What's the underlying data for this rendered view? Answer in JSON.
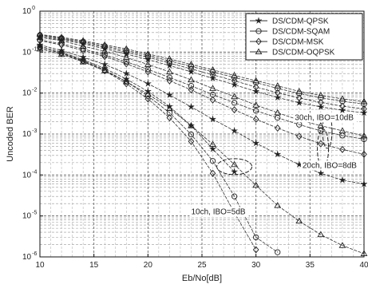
{
  "chart_data": {
    "type": "line",
    "xlabel": "Eb/No[dB]",
    "ylabel": "Uncoded BER",
    "xlim": [
      10,
      40
    ],
    "ylim_log10": [
      -6,
      0
    ],
    "y_scale": "log",
    "grid": "on, dashed",
    "legend_position": "top-right",
    "x_ticks": [
      "10",
      "15",
      "20",
      "25",
      "30",
      "35",
      "40"
    ],
    "y_tick_mantissa": "10",
    "y_tick_exponents": [
      "0",
      "-1",
      "-2",
      "-3",
      "-4",
      "-5",
      "-6"
    ],
    "series": [
      {
        "name": "DS/CDM-QPSK",
        "marker": "star",
        "groups": [
          {
            "x": [
              10,
              12,
              14,
              16,
              18,
              20,
              22,
              24,
              26,
              28
            ],
            "y": [
              0.14,
              0.1,
              0.065,
              0.04,
              0.022,
              0.011,
              0.0047,
              0.0016,
              0.00043,
              0.00012
            ]
          },
          {
            "x": [
              10,
              12,
              14,
              16,
              18,
              20,
              22,
              24,
              26,
              28,
              30,
              32,
              34,
              36,
              38,
              40
            ],
            "y": [
              0.15,
              0.11,
              0.075,
              0.05,
              0.03,
              0.017,
              0.009,
              0.0046,
              0.0023,
              0.0012,
              0.0006,
              0.00032,
              0.00018,
              0.00011,
              7.5e-05,
              6e-05
            ]
          },
          {
            "x": [
              10,
              12,
              14,
              16,
              18,
              20,
              22,
              24,
              26,
              28,
              30,
              32,
              34,
              36,
              38,
              40
            ],
            "y": [
              0.24,
              0.2,
              0.16,
              0.12,
              0.09,
              0.066,
              0.047,
              0.033,
              0.023,
              0.016,
              0.011,
              0.0078,
              0.0058,
              0.0046,
              0.0038,
              0.0033
            ]
          }
        ]
      },
      {
        "name": "DS/CDM-SQAM",
        "marker": "circle",
        "groups": [
          {
            "x": [
              10,
              12,
              14,
              16,
              18,
              20,
              22,
              24,
              26,
              28,
              30,
              32
            ],
            "y": [
              0.13,
              0.095,
              0.062,
              0.037,
              0.019,
              0.0085,
              0.0033,
              0.00098,
              0.00022,
              3e-05,
              3e-06,
              1.3e-06
            ]
          },
          {
            "x": [
              10,
              12,
              14,
              16,
              18,
              20,
              22,
              24,
              26,
              28,
              30,
              32,
              34,
              36,
              38,
              40
            ],
            "y": [
              0.2,
              0.16,
              0.12,
              0.085,
              0.058,
              0.038,
              0.024,
              0.015,
              0.0092,
              0.0058,
              0.0037,
              0.0025,
              0.0017,
              0.0012,
              0.00092,
              0.00075
            ]
          },
          {
            "x": [
              10,
              12,
              14,
              16,
              18,
              20,
              22,
              24,
              26,
              28,
              30,
              32,
              34,
              36,
              38,
              40
            ],
            "y": [
              0.26,
              0.22,
              0.18,
              0.14,
              0.11,
              0.082,
              0.061,
              0.045,
              0.033,
              0.024,
              0.018,
              0.013,
              0.0098,
              0.0077,
              0.0063,
              0.0054
            ]
          }
        ]
      },
      {
        "name": "DS/CDM-MSK",
        "marker": "diamond",
        "groups": [
          {
            "x": [
              10,
              12,
              14,
              16,
              18,
              20,
              22,
              24,
              26,
              28,
              30
            ],
            "y": [
              0.13,
              0.093,
              0.06,
              0.035,
              0.017,
              0.0072,
              0.0025,
              0.00066,
              0.00011,
              1.2e-05,
              1.5e-06
            ]
          },
          {
            "x": [
              10,
              12,
              14,
              16,
              18,
              20,
              22,
              24,
              26,
              28,
              30,
              32,
              34,
              36,
              38,
              40
            ],
            "y": [
              0.19,
              0.15,
              0.11,
              0.078,
              0.052,
              0.033,
              0.02,
              0.012,
              0.0068,
              0.0039,
              0.0023,
              0.0014,
              0.00088,
              0.00058,
              0.00042,
              0.00032
            ]
          },
          {
            "x": [
              10,
              12,
              14,
              16,
              18,
              20,
              22,
              24,
              26,
              28,
              30,
              32,
              34,
              36,
              38,
              40
            ],
            "y": [
              0.26,
              0.21,
              0.17,
              0.13,
              0.1,
              0.075,
              0.054,
              0.039,
              0.028,
              0.02,
              0.014,
              0.0102,
              0.0076,
              0.0059,
              0.0048,
              0.0041
            ]
          }
        ]
      },
      {
        "name": "DS/CDM-OQPSK",
        "marker": "triangle",
        "groups": [
          {
            "x": [
              10,
              12,
              14,
              16,
              18,
              20,
              22,
              24,
              26,
              28,
              30,
              32,
              34,
              36,
              38,
              40
            ],
            "y": [
              0.12,
              0.088,
              0.058,
              0.035,
              0.019,
              0.0095,
              0.0042,
              0.0016,
              0.00056,
              0.00018,
              5.6e-05,
              1.8e-05,
              7.5e-06,
              3.5e-06,
              1.9e-06,
              1.2e-06
            ]
          },
          {
            "x": [
              10,
              12,
              14,
              16,
              18,
              20,
              22,
              24,
              26,
              28,
              30,
              32,
              34,
              36,
              38,
              40
            ],
            "y": [
              0.23,
              0.19,
              0.14,
              0.105,
              0.074,
              0.05,
              0.033,
              0.021,
              0.013,
              0.0082,
              0.0051,
              0.0033,
              0.0022,
              0.0016,
              0.0012,
              0.0009
            ]
          },
          {
            "x": [
              10,
              12,
              14,
              16,
              18,
              20,
              22,
              24,
              26,
              28,
              30,
              32,
              34,
              36,
              38,
              40
            ],
            "y": [
              0.27,
              0.23,
              0.19,
              0.15,
              0.12,
              0.09,
              0.068,
              0.05,
              0.037,
              0.027,
              0.02,
              0.015,
              0.011,
              0.0088,
              0.0072,
              0.0062
            ]
          }
        ]
      }
    ],
    "annotations": [
      {
        "text": "10ch, IBO=5dB",
        "x": 24,
        "y": 1.1e-05
      },
      {
        "text": "20ch, IBO=8dB",
        "x": 34.3,
        "y": 0.00015
      },
      {
        "text": "30ch, IBO=10dB",
        "x": 33.6,
        "y": 0.0022
      }
    ]
  }
}
